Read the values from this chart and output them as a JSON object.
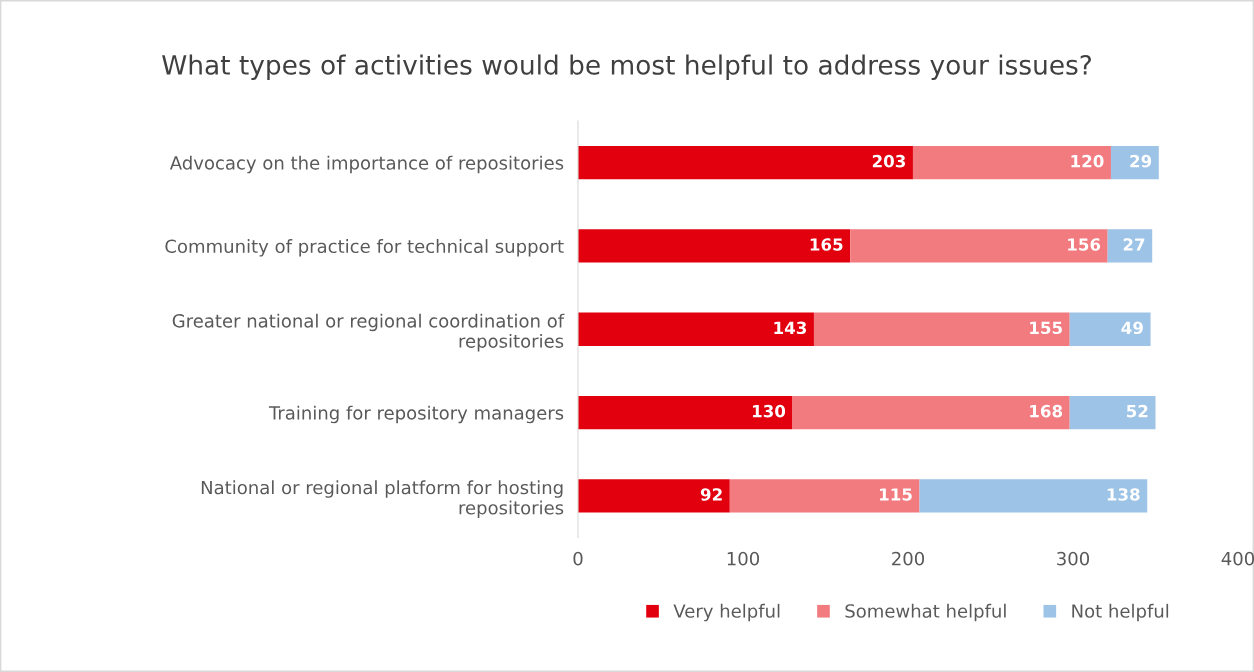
{
  "chart_data": {
    "type": "bar",
    "orientation": "horizontal",
    "stacked": true,
    "title": "What types of activities would be most helpful to address your issues?",
    "categories": [
      "Advocacy on the importance of repositories",
      "Community of practice for technical support",
      "Greater national or regional coordination of\nrepositories",
      "Training for repository managers",
      "National or regional platform for hosting\nrepositories"
    ],
    "series": [
      {
        "name": "Very helpful",
        "color": "#e2000f",
        "values": [
          203,
          165,
          143,
          130,
          92
        ]
      },
      {
        "name": "Somewhat helpful",
        "color": "#f27b80",
        "values": [
          120,
          156,
          155,
          168,
          115
        ]
      },
      {
        "name": "Not helpful",
        "color": "#9dc3e6",
        "values": [
          29,
          27,
          49,
          52,
          138
        ]
      }
    ],
    "xlim": [
      0,
      400
    ],
    "xticks": [
      0,
      100,
      200,
      300,
      400
    ],
    "data_labels": true,
    "grid": false,
    "legend": "bottom"
  }
}
